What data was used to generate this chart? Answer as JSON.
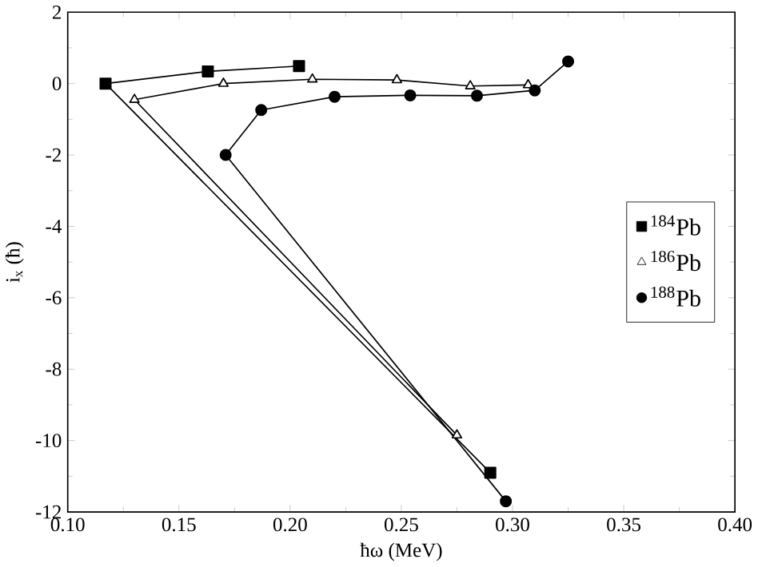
{
  "chart_data": {
    "type": "line",
    "xlabel": "ħω (MeV)",
    "ylabel": "i$_{x}$ (ħ)",
    "series": [
      {
        "name": "$^{184}$Pb",
        "color": "#000000",
        "marker": "square",
        "x": [
          0.204,
          0.163,
          0.117,
          0.29
        ],
        "values": [
          0.49,
          0.34,
          0.0,
          -10.9
        ]
      },
      {
        "name": "$^{186}$Pb",
        "color": "#000000",
        "marker": "triangle",
        "x": [
          0.307,
          0.281,
          0.248,
          0.21,
          0.17,
          0.13,
          0.275
        ],
        "values": [
          -0.04,
          -0.07,
          0.1,
          0.12,
          0.0,
          -0.45,
          -9.85
        ]
      },
      {
        "name": "$^{188}$Pb",
        "color": "#000000",
        "marker": "circle",
        "x": [
          0.325,
          0.31,
          0.284,
          0.254,
          0.22,
          0.187,
          0.171,
          0.297
        ],
        "values": [
          0.62,
          -0.19,
          -0.34,
          -0.33,
          -0.37,
          -0.74,
          -2.0,
          -11.7
        ]
      }
    ],
    "xlim": [
      0.1,
      0.4
    ],
    "xticks": [
      {
        "value": 0.1,
        "label": "0.10"
      },
      {
        "value": 0.15,
        "label": "0.15"
      },
      {
        "value": 0.2,
        "label": "0.20"
      },
      {
        "value": 0.25,
        "label": "0.25"
      },
      {
        "value": 0.3,
        "label": "0.30"
      },
      {
        "value": 0.35,
        "label": "0.35"
      },
      {
        "value": 0.4,
        "label": "0.40"
      }
    ],
    "ylim": [
      -12,
      2
    ],
    "yticks": [
      -12,
      -10,
      -8,
      -6,
      -4,
      -2,
      0,
      2
    ],
    "legend": "right",
    "grid": false
  }
}
